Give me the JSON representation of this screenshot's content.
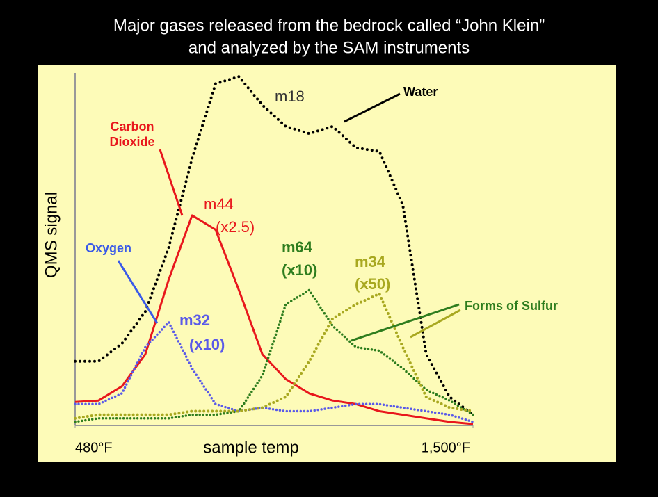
{
  "chart_data": {
    "type": "line",
    "title": [
      "Major gases released from the bedrock called “John Klein”",
      "and analyzed by the SAM instruments"
    ],
    "xlabel": "sample temp",
    "ylabel": "QMS signal",
    "xlim": [
      480,
      1500
    ],
    "xticks": [
      {
        "value": 480,
        "label": "480°F"
      },
      {
        "value": 1500,
        "label": "1,500°F"
      }
    ],
    "ylim": [
      0,
      100
    ],
    "x": [
      480,
      540,
      600,
      660,
      720,
      780,
      840,
      900,
      960,
      1020,
      1080,
      1140,
      1200,
      1260,
      1320,
      1380,
      1440,
      1500
    ],
    "series": [
      {
        "name": "m18",
        "color": "#000000",
        "values": [
          18,
          18,
          23,
          32,
          50,
          75,
          96,
          98,
          90,
          84,
          82,
          84,
          78,
          77,
          62,
          20,
          8,
          3
        ]
      },
      {
        "name": "m44",
        "scale": "(x2.5)",
        "color": "#e8171c",
        "values": [
          6.6,
          7,
          11,
          20,
          41,
          59,
          55,
          38,
          20,
          13,
          9,
          7,
          6,
          4,
          3,
          2,
          1,
          0.4
        ]
      },
      {
        "name": "m32",
        "scale": "(x10)",
        "color": "#5a5ae8",
        "values": [
          6,
          6,
          9,
          22,
          29,
          16,
          6,
          4,
          5,
          4,
          4,
          5,
          6,
          6,
          5,
          4,
          3,
          1
        ]
      },
      {
        "name": "m64",
        "scale": "(x10)",
        "color": "#2e7d1e",
        "values": [
          1,
          2,
          2,
          2,
          2,
          3,
          3,
          4,
          14,
          34,
          38,
          28,
          22,
          21,
          16,
          10,
          7,
          3
        ]
      },
      {
        "name": "m34",
        "scale": "(x50)",
        "color": "#a8a820",
        "values": [
          2,
          3,
          3,
          3,
          3,
          4,
          4,
          4,
          5,
          8,
          18,
          30,
          34,
          37,
          22,
          8,
          5,
          4
        ]
      }
    ],
    "annotations": [
      {
        "text": [
          "Water"
        ],
        "color": "#000000"
      },
      {
        "text": [
          "Carbon",
          "Dioxide"
        ],
        "color": "#e8171c"
      },
      {
        "text": [
          "Oxygen"
        ],
        "color": "#3a5ae8"
      },
      {
        "text": [
          "Forms of Sulfur"
        ],
        "color": "#2e7d1e"
      }
    ]
  }
}
